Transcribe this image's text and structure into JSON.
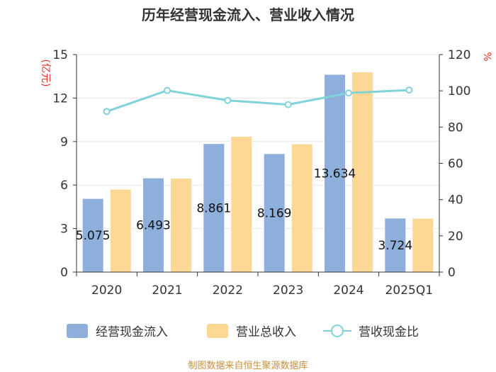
{
  "chart_data": {
    "type": "bar",
    "title": "历年经营现金流入、营业收入情况",
    "categories": [
      "2020",
      "2021",
      "2022",
      "2023",
      "2024",
      "2025Q1"
    ],
    "series": [
      {
        "name": "经营现金流入",
        "type": "bar",
        "axis": "left",
        "color": "#8eaedb",
        "values": [
          5.075,
          6.493,
          8.861,
          8.169,
          13.634,
          3.724
        ]
      },
      {
        "name": "营业总收入",
        "type": "bar",
        "axis": "left",
        "color": "#fdd894",
        "values": [
          5.72,
          6.48,
          9.36,
          8.84,
          13.8,
          3.71
        ]
      },
      {
        "name": "营收现金比",
        "type": "line",
        "axis": "right",
        "color": "#7fd3d9",
        "values": [
          88.6,
          100.2,
          94.7,
          92.4,
          98.8,
          100.4
        ]
      }
    ],
    "bar_labels": [
      "5.075",
      "6.493",
      "8.861",
      "8.169",
      "13.634",
      "3.724"
    ],
    "y_left": {
      "label": "(亿元)",
      "ylim": [
        0,
        15
      ],
      "ticks": [
        "0",
        "3",
        "6",
        "9",
        "12",
        "15"
      ]
    },
    "y_right": {
      "label": "%",
      "ylim": [
        0,
        120
      ],
      "ticks": [
        "0",
        "20",
        "40",
        "60",
        "80",
        "100",
        "120"
      ]
    },
    "legend_position": "bottom",
    "grid": true
  },
  "source": "制图数据来自恒生聚源数据库"
}
